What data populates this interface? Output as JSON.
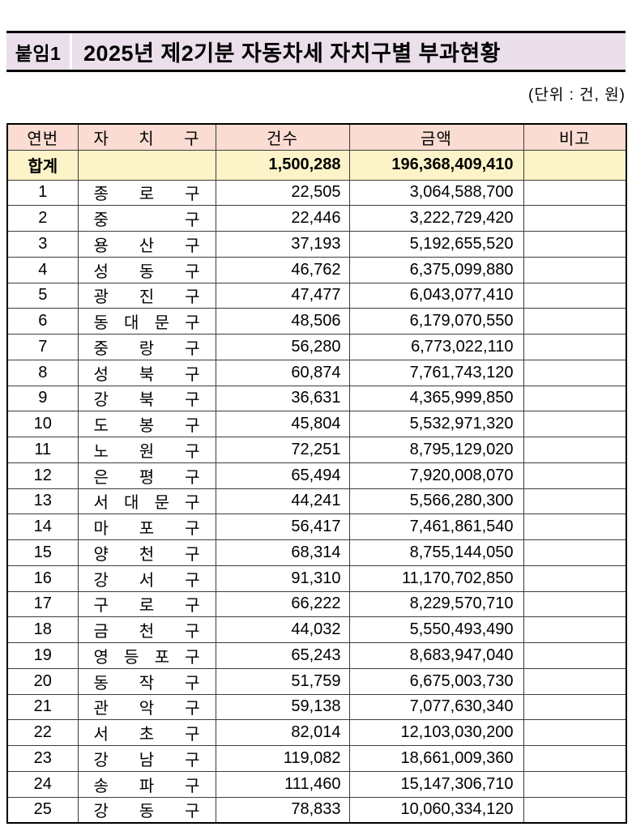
{
  "header": {
    "badge": "붙임1",
    "title": "2025년 제2기분 자동차세 자치구별 부과현황",
    "unit_note": "(단위 : 건, 원)"
  },
  "table": {
    "columns": [
      "연번",
      "자치구",
      "건수",
      "금액",
      "비고"
    ],
    "total": {
      "label": "합계",
      "district": "",
      "count": "1,500,288",
      "amount": "196,368,409,410",
      "note": ""
    },
    "rows": [
      {
        "no": "1",
        "district": "종로구",
        "count": "22,505",
        "amount": "3,064,588,700",
        "note": ""
      },
      {
        "no": "2",
        "district": "중구",
        "count": "22,446",
        "amount": "3,222,729,420",
        "note": ""
      },
      {
        "no": "3",
        "district": "용산구",
        "count": "37,193",
        "amount": "5,192,655,520",
        "note": ""
      },
      {
        "no": "4",
        "district": "성동구",
        "count": "46,762",
        "amount": "6,375,099,880",
        "note": ""
      },
      {
        "no": "5",
        "district": "광진구",
        "count": "47,477",
        "amount": "6,043,077,410",
        "note": ""
      },
      {
        "no": "6",
        "district": "동대문구",
        "count": "48,506",
        "amount": "6,179,070,550",
        "note": ""
      },
      {
        "no": "7",
        "district": "중랑구",
        "count": "56,280",
        "amount": "6,773,022,110",
        "note": ""
      },
      {
        "no": "8",
        "district": "성북구",
        "count": "60,874",
        "amount": "7,761,743,120",
        "note": ""
      },
      {
        "no": "9",
        "district": "강북구",
        "count": "36,631",
        "amount": "4,365,999,850",
        "note": ""
      },
      {
        "no": "10",
        "district": "도봉구",
        "count": "45,804",
        "amount": "5,532,971,320",
        "note": ""
      },
      {
        "no": "11",
        "district": "노원구",
        "count": "72,251",
        "amount": "8,795,129,020",
        "note": ""
      },
      {
        "no": "12",
        "district": "은평구",
        "count": "65,494",
        "amount": "7,920,008,070",
        "note": ""
      },
      {
        "no": "13",
        "district": "서대문구",
        "count": "44,241",
        "amount": "5,566,280,300",
        "note": ""
      },
      {
        "no": "14",
        "district": "마포구",
        "count": "56,417",
        "amount": "7,461,861,540",
        "note": ""
      },
      {
        "no": "15",
        "district": "양천구",
        "count": "68,314",
        "amount": "8,755,144,050",
        "note": ""
      },
      {
        "no": "16",
        "district": "강서구",
        "count": "91,310",
        "amount": "11,170,702,850",
        "note": ""
      },
      {
        "no": "17",
        "district": "구로구",
        "count": "66,222",
        "amount": "8,229,570,710",
        "note": ""
      },
      {
        "no": "18",
        "district": "금천구",
        "count": "44,032",
        "amount": "5,550,493,490",
        "note": ""
      },
      {
        "no": "19",
        "district": "영등포구",
        "count": "65,243",
        "amount": "8,683,947,040",
        "note": ""
      },
      {
        "no": "20",
        "district": "동작구",
        "count": "51,759",
        "amount": "6,675,003,730",
        "note": ""
      },
      {
        "no": "21",
        "district": "관악구",
        "count": "59,138",
        "amount": "7,077,630,340",
        "note": ""
      },
      {
        "no": "22",
        "district": "서초구",
        "count": "82,014",
        "amount": "12,103,030,200",
        "note": ""
      },
      {
        "no": "23",
        "district": "강남구",
        "count": "119,082",
        "amount": "18,661,009,360",
        "note": ""
      },
      {
        "no": "24",
        "district": "송파구",
        "count": "111,460",
        "amount": "15,147,306,710",
        "note": ""
      },
      {
        "no": "25",
        "district": "강동구",
        "count": "78,833",
        "amount": "10,060,334,120",
        "note": ""
      }
    ]
  },
  "colors": {
    "banner_bg": "#EADFEA",
    "header_row_bg": "#FADCD2",
    "total_row_bg": "#FCF4C8",
    "outer_border": "#000000",
    "grid_line": "#3C3C3C",
    "text": "#000000"
  }
}
